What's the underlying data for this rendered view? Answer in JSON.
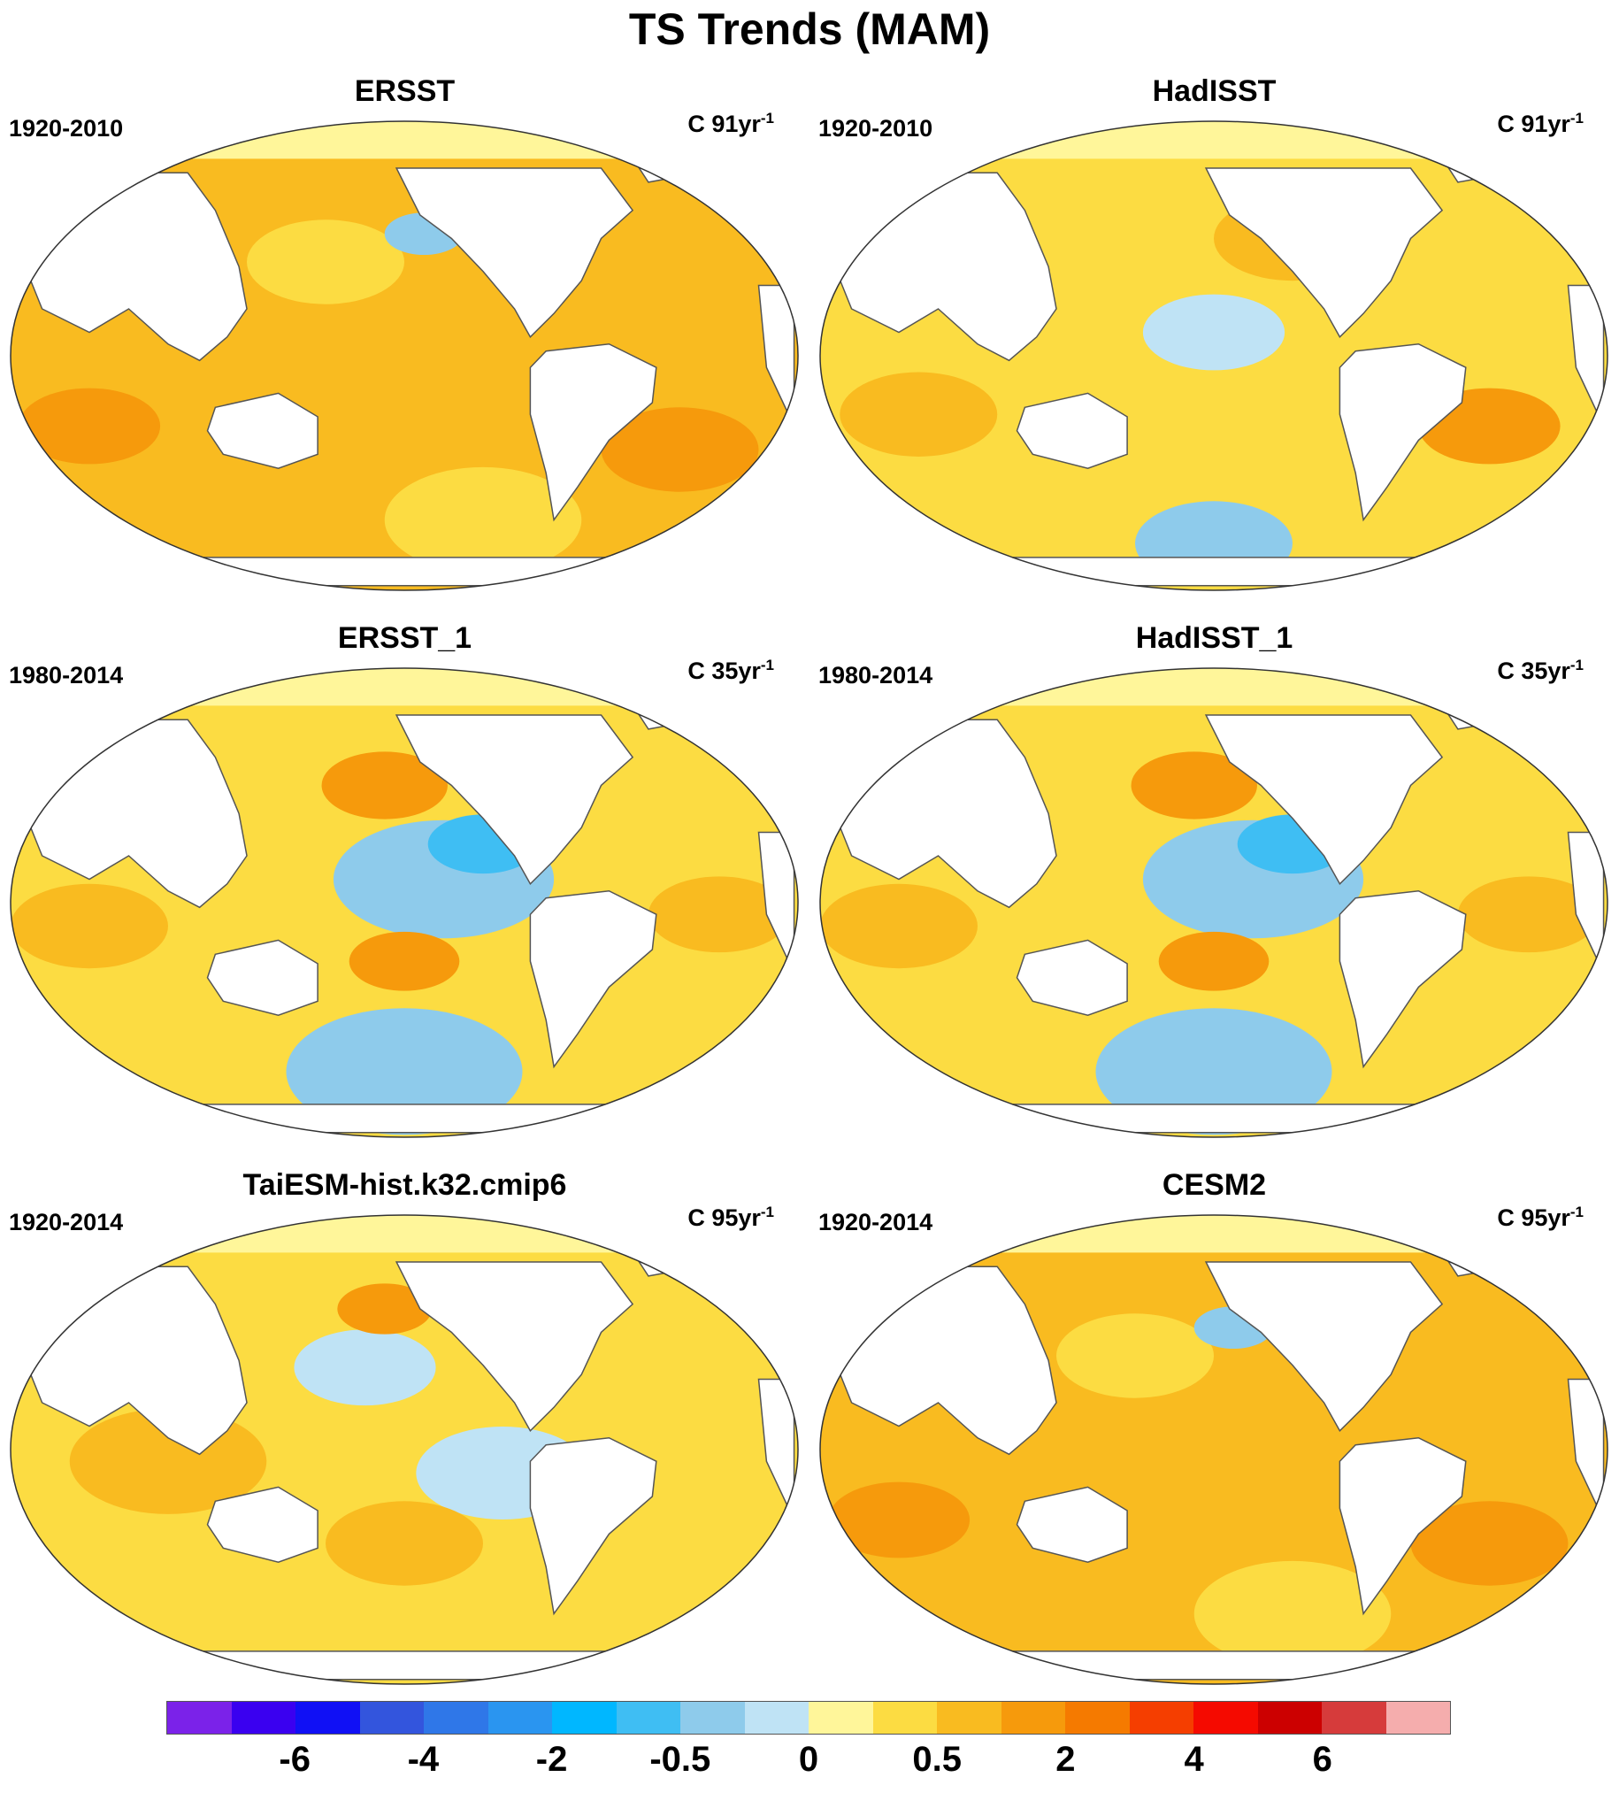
{
  "title": "TS Trends (MAM)",
  "panels": [
    {
      "name": "ERSST",
      "period": "1920-2010",
      "units_prefix": "C 91yr",
      "units_exp": "-1",
      "style": "warm"
    },
    {
      "name": "HadISST",
      "period": "1920-2010",
      "units_prefix": "C 91yr",
      "units_exp": "-1",
      "style": "mixed"
    },
    {
      "name": "ERSST_1",
      "period": "1980-2014",
      "units_prefix": "C 35yr",
      "units_exp": "-1",
      "style": "cool"
    },
    {
      "name": "HadISST_1",
      "period": "1980-2014",
      "units_prefix": "C 35yr",
      "units_exp": "-1",
      "style": "cool"
    },
    {
      "name": "TaiESM-hist.k32.cmip6",
      "period": "1920-2014",
      "units_prefix": "C 95yr",
      "units_exp": "-1",
      "style": "model"
    },
    {
      "name": "CESM2",
      "period": "1920-2014",
      "units_prefix": "C 95yr",
      "units_exp": "-1",
      "style": "warm"
    }
  ],
  "colorbar": {
    "colors": [
      "#7b22e9",
      "#3a00f0",
      "#1010f5",
      "#3355dd",
      "#2f77e8",
      "#2a95f0",
      "#00b7ff",
      "#3fbef3",
      "#8ecbeb",
      "#bfe3f5",
      "#fff69a",
      "#fcdc42",
      "#f9bb20",
      "#f69a0c",
      "#f57a00",
      "#f53e00",
      "#f50a00",
      "#cc0000",
      "#d63b3b",
      "#f5adad"
    ],
    "tick_labels": [
      "-6",
      "-4",
      "-2",
      "-0.5",
      "0",
      "0.5",
      "2",
      "4",
      "6"
    ],
    "tick_boundaries": [
      2,
      4,
      6,
      8,
      10,
      12,
      14,
      16,
      18
    ]
  }
}
